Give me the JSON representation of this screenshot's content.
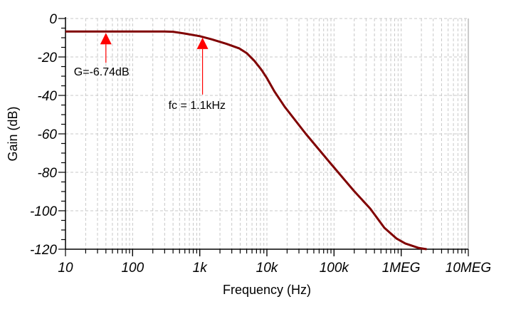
{
  "chart_data": {
    "type": "line",
    "xlabel": "Frequency (Hz)",
    "ylabel": "Gain (dB)",
    "x_scale": "log",
    "xlim": [
      10,
      10000000
    ],
    "ylim": [
      -120,
      0
    ],
    "x_ticks": [
      10,
      100,
      1000,
      10000,
      100000,
      1000000,
      10000000
    ],
    "x_tick_labels": [
      "10",
      "100",
      "1k",
      "10k",
      "100k",
      "1MEG",
      "10MEG"
    ],
    "y_ticks": [
      0,
      -20,
      -40,
      -60,
      -80,
      -100,
      -120
    ],
    "y_tick_labels": [
      "0",
      "-20",
      "-40",
      "-60",
      "-80",
      "-100",
      "-120"
    ],
    "grid": true,
    "series": [
      {
        "color": "#800000",
        "x": [
          10,
          100,
          300,
          400,
          600,
          1000,
          1500,
          2500,
          3900,
          5000,
          6500,
          8300,
          10000,
          13000,
          18400,
          38000,
          86000,
          197000,
          346000,
          562000,
          850000,
          1150000,
          1800000,
          2400000
        ],
        "y": [
          -6.74,
          -6.74,
          -6.76,
          -6.9,
          -7.8,
          -9.2,
          -10.8,
          -13.2,
          -15.6,
          -18,
          -22,
          -26.7,
          -31,
          -38,
          -45.9,
          -60,
          -74.8,
          -89.6,
          -98.9,
          -108.9,
          -114.4,
          -117,
          -119.3,
          -120.4
        ]
      }
    ],
    "annotations": [
      {
        "text": "G=-6.74dB",
        "x": 40,
        "y": -6.74,
        "color": "#ff0000"
      },
      {
        "text": "fc = 1.1kHz",
        "x": 1100,
        "y": -9.2,
        "color": "#ff0000"
      }
    ]
  }
}
